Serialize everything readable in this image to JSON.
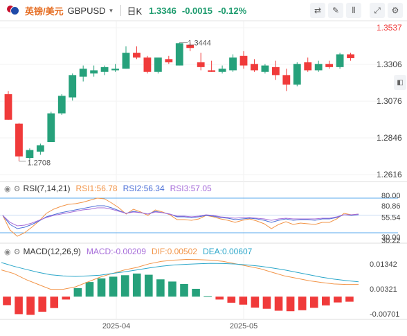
{
  "header": {
    "pair_cn": "英镑/美元",
    "pair_code": "GBPUSD",
    "period": "日K",
    "price": "1.3346",
    "change": "-0.0015",
    "change_pct": "-0.12%",
    "up_color": "#26a17b",
    "down_color": "#f03a3a"
  },
  "icons": [
    "compare-icon",
    "draw-icon",
    "indicator-icon",
    "expand-icon",
    "settings-icon",
    "right-panel-toggle-icon"
  ],
  "rsi": {
    "label": "RSI(7,14,21)",
    "rsi1": "RSI1:56.78",
    "rsi2": "RSI2:56.34",
    "rsi3": "RSI3:57.05",
    "colors": [
      "#f29447",
      "#4c6fd7",
      "#a66cd9"
    ],
    "axis_labels": [
      "80.00",
      "80.86",
      "55.54",
      "30.00",
      "30.22"
    ]
  },
  "macd": {
    "label": "MACD(12,26,9)",
    "macd_text": "MACD:-0.00209",
    "dif_text": "DIF:0.00502",
    "dea_text": "DEA:0.00607",
    "axis_labels": [
      "0.01342",
      "0.00321",
      "-0.00701"
    ]
  },
  "chart_data": [
    {
      "type": "candlestick",
      "title": "英镑/美元 GBPUSD 日K",
      "y_ticks": [
        1.3537,
        1.3306,
        1.3076,
        1.2846,
        1.2616
      ],
      "ylim": [
        1.2616,
        1.3537
      ],
      "x_ticks": [
        "2025-04",
        "2025-05"
      ],
      "annotations": [
        {
          "text": "1.3444",
          "value": 1.3444,
          "point": "high"
        },
        {
          "text": "1.2708",
          "value": 1.2708,
          "point": "low"
        }
      ],
      "candles": [
        {
          "o": 1.312,
          "h": 1.314,
          "l": 1.296,
          "c": 1.296
        },
        {
          "o": 1.2935,
          "h": 1.294,
          "l": 1.27,
          "c": 1.273
        },
        {
          "o": 1.272,
          "h": 1.278,
          "l": 1.2708,
          "c": 1.277
        },
        {
          "o": 1.276,
          "h": 1.281,
          "l": 1.274,
          "c": 1.28
        },
        {
          "o": 1.282,
          "h": 1.301,
          "l": 1.282,
          "c": 1.3
        },
        {
          "o": 1.3,
          "h": 1.312,
          "l": 1.299,
          "c": 1.311
        },
        {
          "o": 1.31,
          "h": 1.325,
          "l": 1.308,
          "c": 1.324
        },
        {
          "o": 1.323,
          "h": 1.33,
          "l": 1.32,
          "c": 1.328
        },
        {
          "o": 1.325,
          "h": 1.33,
          "l": 1.323,
          "c": 1.327
        },
        {
          "o": 1.326,
          "h": 1.33,
          "l": 1.324,
          "c": 1.329
        },
        {
          "o": 1.327,
          "h": 1.331,
          "l": 1.326,
          "c": 1.328
        },
        {
          "o": 1.328,
          "h": 1.342,
          "l": 1.328,
          "c": 1.338
        },
        {
          "o": 1.338,
          "h": 1.342,
          "l": 1.334,
          "c": 1.335
        },
        {
          "o": 1.335,
          "h": 1.336,
          "l": 1.325,
          "c": 1.326
        },
        {
          "o": 1.326,
          "h": 1.335,
          "l": 1.325,
          "c": 1.335
        },
        {
          "o": 1.334,
          "h": 1.336,
          "l": 1.331,
          "c": 1.332
        },
        {
          "o": 1.33,
          "h": 1.3444,
          "l": 1.33,
          "c": 1.344
        },
        {
          "o": 1.343,
          "h": 1.3444,
          "l": 1.339,
          "c": 1.341
        },
        {
          "o": 1.332,
          "h": 1.338,
          "l": 1.327,
          "c": 1.329
        },
        {
          "o": 1.327,
          "h": 1.333,
          "l": 1.326,
          "c": 1.326
        },
        {
          "o": 1.326,
          "h": 1.33,
          "l": 1.325,
          "c": 1.328
        },
        {
          "o": 1.327,
          "h": 1.337,
          "l": 1.326,
          "c": 1.335
        },
        {
          "o": 1.336,
          "h": 1.339,
          "l": 1.328,
          "c": 1.33
        },
        {
          "o": 1.331,
          "h": 1.334,
          "l": 1.326,
          "c": 1.327
        },
        {
          "o": 1.326,
          "h": 1.331,
          "l": 1.325,
          "c": 1.33
        },
        {
          "o": 1.329,
          "h": 1.333,
          "l": 1.321,
          "c": 1.324
        },
        {
          "o": 1.324,
          "h": 1.328,
          "l": 1.314,
          "c": 1.318
        },
        {
          "o": 1.318,
          "h": 1.332,
          "l": 1.317,
          "c": 1.331
        },
        {
          "o": 1.332,
          "h": 1.335,
          "l": 1.326,
          "c": 1.327
        },
        {
          "o": 1.327,
          "h": 1.333,
          "l": 1.326,
          "c": 1.331
        },
        {
          "o": 1.331,
          "h": 1.333,
          "l": 1.328,
          "c": 1.329
        },
        {
          "o": 1.329,
          "h": 1.338,
          "l": 1.328,
          "c": 1.337
        },
        {
          "o": 1.337,
          "h": 1.338,
          "l": 1.333,
          "c": 1.3346
        }
      ]
    },
    {
      "type": "line",
      "title": "RSI(7,14,21)",
      "ylim": [
        20,
        90
      ],
      "hlines": [
        80,
        55.54,
        30
      ],
      "series": [
        {
          "name": "RSI1",
          "values": [
            55,
            34,
            25,
            30,
            38,
            47,
            58,
            64,
            68,
            71,
            72,
            74,
            77,
            80,
            79,
            73,
            66,
            57,
            64,
            60,
            55,
            63,
            60,
            56,
            49,
            49,
            48,
            50,
            55,
            53,
            50,
            48,
            45,
            48,
            50,
            47,
            43,
            36,
            42,
            46,
            42,
            44,
            43,
            42,
            45,
            45,
            50,
            58,
            56,
            57
          ]
        },
        {
          "name": "RSI2",
          "values": [
            55,
            42,
            36,
            38,
            42,
            47,
            53,
            56,
            59,
            61,
            63,
            65,
            67,
            69,
            69,
            66,
            62,
            58,
            61,
            59,
            57,
            61,
            59,
            57,
            53,
            53,
            52,
            53,
            55,
            54,
            52,
            51,
            49,
            50,
            51,
            50,
            48,
            45,
            48,
            50,
            48,
            49,
            49,
            48,
            50,
            50,
            52,
            56,
            55,
            56
          ]
        },
        {
          "name": "RSI3",
          "values": [
            55,
            45,
            40,
            41,
            44,
            48,
            52,
            55,
            57,
            59,
            61,
            63,
            64,
            66,
            66,
            64,
            61,
            58,
            60,
            59,
            57,
            60,
            59,
            57,
            54,
            54,
            53,
            54,
            56,
            55,
            53,
            52,
            51,
            52,
            52,
            51,
            50,
            48,
            50,
            51,
            50,
            50,
            50,
            50,
            51,
            51,
            53,
            56,
            56,
            57
          ]
        }
      ],
      "legend": [
        "RSI1:56.78",
        "RSI2:56.34",
        "RSI3:57.05"
      ]
    },
    {
      "type": "bar+line",
      "title": "MACD(12,26,9)",
      "ylim": [
        -0.0085,
        0.016
      ],
      "series": [
        {
          "name": "MACD",
          "values": [
            -0.0035,
            -0.0072,
            -0.0075,
            -0.0062,
            -0.0047,
            -0.0012,
            0.0035,
            0.006,
            0.0075,
            0.0082,
            0.0088,
            0.0095,
            0.009,
            0.0071,
            0.0062,
            0.0052,
            0.0032,
            0.0002,
            -0.0012,
            -0.0025,
            -0.0033,
            -0.0045,
            -0.005,
            -0.0058,
            -0.006,
            -0.0056,
            -0.0046,
            -0.0036,
            -0.0024,
            -0.0021
          ]
        },
        {
          "name": "DIF",
          "values": [
            0.011,
            0.0095,
            0.007,
            0.005,
            0.003,
            0.003,
            0.004,
            0.006,
            0.008,
            0.0095,
            0.011,
            0.012,
            0.0135,
            0.0145,
            0.015,
            0.0153,
            0.0152,
            0.015,
            0.0145,
            0.0135,
            0.0125,
            0.0115,
            0.01,
            0.0085,
            0.0075,
            0.0065,
            0.0058,
            0.0052,
            0.005,
            0.005
          ]
        },
        {
          "name": "DEA",
          "values": [
            0.014,
            0.0125,
            0.0112,
            0.01,
            0.009,
            0.0085,
            0.0083,
            0.0085,
            0.0088,
            0.0095,
            0.0102,
            0.011,
            0.0118,
            0.0125,
            0.013,
            0.0133,
            0.0135,
            0.0137,
            0.0136,
            0.0134,
            0.013,
            0.0125,
            0.0118,
            0.011,
            0.01,
            0.009,
            0.008,
            0.0072,
            0.0066,
            0.0061
          ]
        }
      ],
      "legend": [
        "MACD:-0.00209",
        "DIF:0.00502",
        "DEA:0.00607"
      ]
    }
  ]
}
